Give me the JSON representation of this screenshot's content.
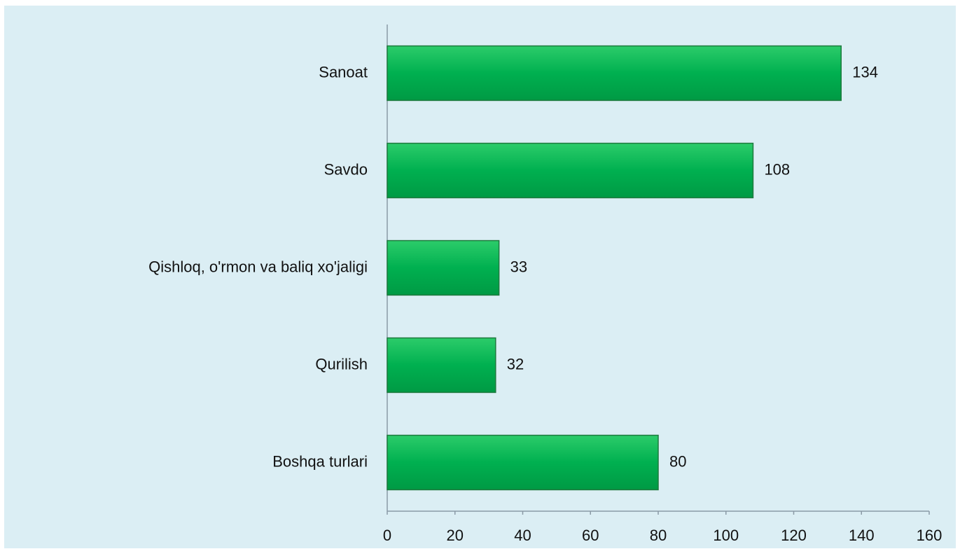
{
  "chart_data": {
    "type": "bar",
    "orientation": "horizontal",
    "categories": [
      "Sanoat",
      "Savdo",
      "Qishloq, o'rmon va baliq xo'jaligi",
      "Qurilish",
      "Boshqa turlari"
    ],
    "values": [
      134,
      108,
      33,
      32,
      80
    ],
    "color": "#00b050",
    "xlim": [
      0,
      160
    ],
    "xticks": [
      0,
      20,
      40,
      60,
      80,
      100,
      120,
      140,
      160
    ],
    "grid": false
  }
}
